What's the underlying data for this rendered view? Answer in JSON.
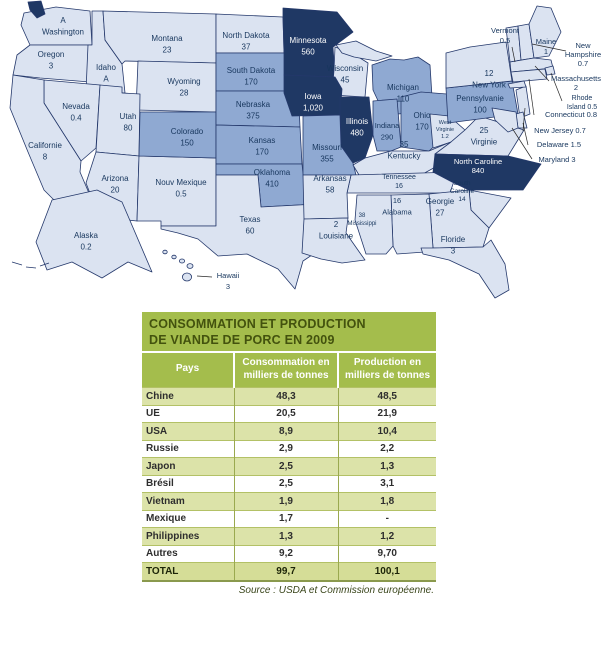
{
  "chart_data": [
    {
      "type": "heatmap",
      "subtype": "us-choropleth-map",
      "description": "Carte des Etats-Unis avec une valeur de production de porc affichee sur chaque Etat",
      "levels": {
        "low": "#dbe3f1",
        "mid": "#8fa9d2",
        "high": "#1f3864"
      },
      "border_color": "#24386b",
      "label_color": "#17365d",
      "label_color_on_dark": "#ffffff",
      "states": {
        "washington": {
          "name": "Washington",
          "value": "A",
          "level": "low"
        },
        "oregon": {
          "name": "Oregon",
          "value": "3",
          "level": "low"
        },
        "california": {
          "name": "Californie",
          "value": "8",
          "level": "low"
        },
        "nevada": {
          "name": "Nevada",
          "value": "0.4",
          "level": "low"
        },
        "idaho": {
          "name": "Idaho",
          "value": "A",
          "level": "low"
        },
        "utah": {
          "name": "Utah",
          "value": "80",
          "level": "low"
        },
        "arizona": {
          "name": "Arizona",
          "value": "20",
          "level": "low"
        },
        "montana": {
          "name": "Montana",
          "value": "23",
          "level": "low"
        },
        "wyoming": {
          "name": "Wyoming",
          "value": "28",
          "level": "low"
        },
        "colorado": {
          "name": "Colorado",
          "value": "150",
          "level": "mid"
        },
        "new_mexico": {
          "name": "Nouv Mexique",
          "value": "0.5",
          "level": "low"
        },
        "north_dakota": {
          "name": "North Dakota",
          "value": "37",
          "level": "low"
        },
        "south_dakota": {
          "name": "South Dakota",
          "value": "170",
          "level": "mid"
        },
        "nebraska": {
          "name": "Nebraska",
          "value": "375",
          "level": "mid"
        },
        "kansas": {
          "name": "Kansas",
          "value": "170",
          "level": "mid"
        },
        "oklahoma": {
          "name": "Oklahoma",
          "value": "410",
          "level": "mid"
        },
        "texas": {
          "name": "Texas",
          "value": "60",
          "level": "low"
        },
        "minnesota": {
          "name": "Minnesota",
          "value": "560",
          "level": "high"
        },
        "iowa": {
          "name": "Iowa",
          "value": "1,020",
          "level": "high"
        },
        "missouri": {
          "name": "Missouri",
          "value": "355",
          "level": "mid"
        },
        "arkansas": {
          "name": "Arkansas",
          "value": "58",
          "level": "low"
        },
        "louisiana": {
          "name": "Louisiane",
          "value": "2",
          "level": "low"
        },
        "wisconsin": {
          "name": "Wisconsin",
          "value": "45",
          "level": "low"
        },
        "illinois": {
          "name": "Illinois",
          "value": "480",
          "level": "high"
        },
        "michigan": {
          "name": "Michigan",
          "value": "110",
          "level": "mid"
        },
        "indiana": {
          "name": "Indiana",
          "value": "290",
          "level": "mid"
        },
        "ohio": {
          "name": "Ohio",
          "value": "170",
          "level": "mid"
        },
        "kentucky": {
          "name": "Kentucky",
          "value": "35",
          "level": "low"
        },
        "tennessee": {
          "name": "Tennessee",
          "value": "16",
          "level": "low"
        },
        "mississippi": {
          "name": "Mississippi",
          "value": "38",
          "level": "low"
        },
        "alabama": {
          "name": "Alabama",
          "value": "16",
          "level": "low"
        },
        "georgia": {
          "name": "Georgie",
          "value": "27",
          "level": "low"
        },
        "florida": {
          "name": "Floride",
          "value": "3",
          "level": "low"
        },
        "south_carolina": {
          "name": "South Caroline",
          "value": "14",
          "level": "low"
        },
        "north_carolina": {
          "name": "North Caroline",
          "value": "840",
          "level": "high"
        },
        "virginia": {
          "name": "Virginie",
          "value": "25",
          "level": "low"
        },
        "west_virginia": {
          "name": "West Virginie",
          "value": "1.2",
          "level": "low"
        },
        "pennsylvania": {
          "name": "Pennsylvanie",
          "value": "100",
          "level": "mid"
        },
        "new_york": {
          "name": "New York",
          "value": "12",
          "level": "low"
        },
        "vermont": {
          "name": "Vermont",
          "value": "0.5",
          "level": "low"
        },
        "maine": {
          "name": "Maine",
          "value": "1",
          "level": "low"
        },
        "new_hampshire": {
          "name": "New Hampshire",
          "value": "0.7",
          "level": "low"
        },
        "massachusetts": {
          "name": "Massachusetts",
          "value": "2",
          "level": "low"
        },
        "rhode_island": {
          "name": "Rhode Island",
          "value": "0.5",
          "level": "low"
        },
        "connecticut": {
          "name": "Connecticut",
          "value": "0.8",
          "level": "low"
        },
        "new_jersey": {
          "name": "New Jersey",
          "value": "0.7",
          "level": "low"
        },
        "delaware": {
          "name": "Delaware",
          "value": "1.5",
          "level": "low"
        },
        "maryland": {
          "name": "Maryland",
          "value": "3",
          "level": "low"
        },
        "alaska": {
          "name": "Alaska",
          "value": "0.2",
          "level": "low"
        },
        "hawaii": {
          "name": "Hawaii",
          "value": "3",
          "level": "low"
        }
      }
    },
    {
      "type": "table",
      "title": [
        "CONSOMMATION ET PRODUCTION",
        "DE VIANDE DE PORC EN 2009"
      ],
      "columns": [
        "Pays",
        "Consommation en milliers de tonnes",
        "Production en milliers de tonnes"
      ],
      "rows": [
        [
          "Chine",
          "48,3",
          "48,5"
        ],
        [
          "UE",
          "20,5",
          "21,9"
        ],
        [
          "USA",
          "8,9",
          "10,4"
        ],
        [
          "Russie",
          "2,9",
          "2,2"
        ],
        [
          "Japon",
          "2,5",
          "1,3"
        ],
        [
          "Brésil",
          "2,5",
          "3,1"
        ],
        [
          "Vietnam",
          "1,9",
          "1,8"
        ],
        [
          "Mexique",
          "1,7",
          "-"
        ],
        [
          "Philippines",
          "1,3",
          "1,2"
        ],
        [
          "Autres",
          "9,2",
          "9,70"
        ]
      ],
      "total": [
        "TOTAL",
        "99,7",
        "100,1"
      ],
      "source": "Source : USDA et Commission européenne.",
      "colors": {
        "header_bg": "#a4bd4c",
        "header_text": "#ffffff",
        "title_text": "#43520e",
        "row_alt": "#dce3a9",
        "row_white": "#ffffff",
        "total_bg": "#d5dd97"
      }
    }
  ]
}
